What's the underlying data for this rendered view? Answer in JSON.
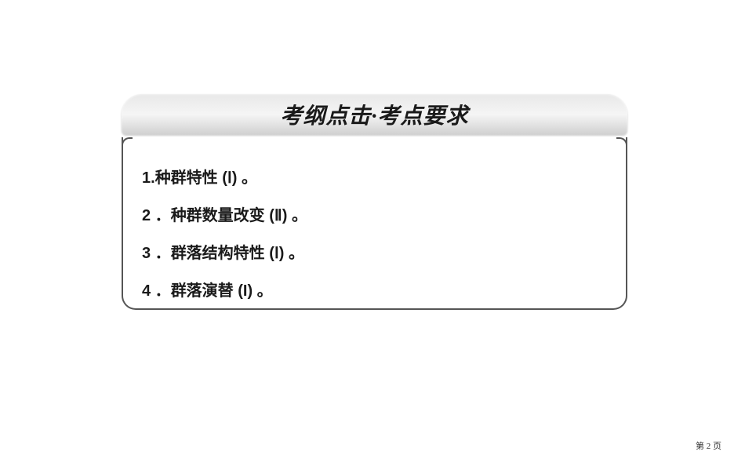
{
  "header": {
    "title": "考纲点击·考点要求"
  },
  "items": [
    {
      "number": "1.",
      "text": "种群特性 (Ⅰ) 。"
    },
    {
      "number": "2 ．",
      "text": "种群数量改变 (Ⅱ) 。"
    },
    {
      "number": "3 ．",
      "text": "群落结构特性 (Ⅰ) 。"
    },
    {
      "number": "4 ．",
      "text": "群落演替 (I) 。"
    }
  ],
  "pageNumber": "第 2 页",
  "colors": {
    "background": "#ffffff",
    "text": "#1a1a1a",
    "border": "#555555",
    "bannerGradientTop": "#e8e8e8",
    "bannerGradientMid": "#f5f5f5",
    "bannerGradientBottom": "#d0d0d0"
  },
  "fonts": {
    "titleFontSize": 28,
    "itemFontSize": 20,
    "pageNumberFontSize": 11
  }
}
